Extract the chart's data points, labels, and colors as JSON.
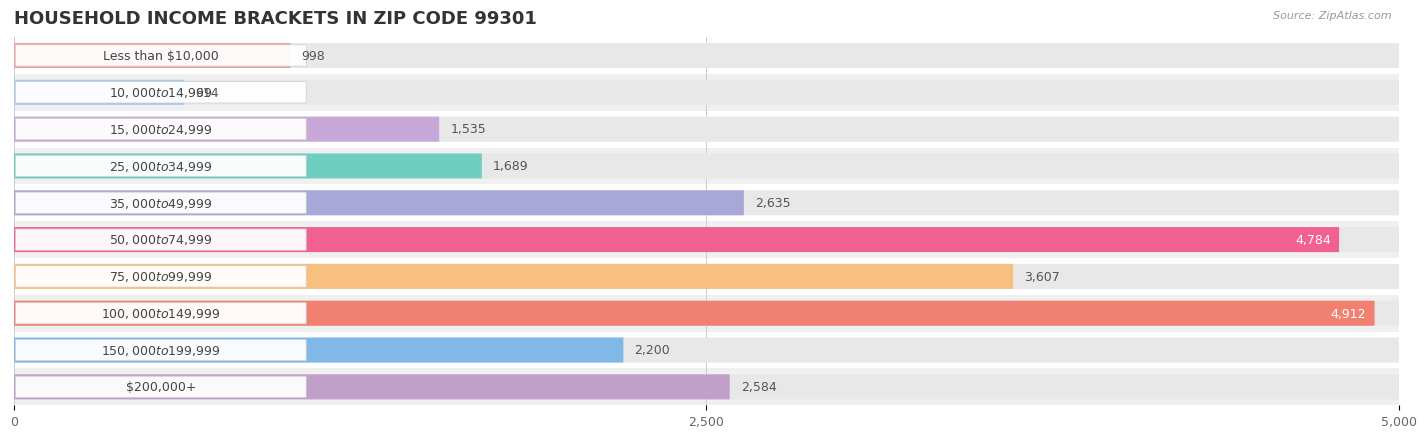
{
  "title": "HOUSEHOLD INCOME BRACKETS IN ZIP CODE 99301",
  "source": "Source: ZipAtlas.com",
  "categories": [
    "Less than $10,000",
    "$10,000 to $14,999",
    "$15,000 to $24,999",
    "$25,000 to $34,999",
    "$35,000 to $49,999",
    "$50,000 to $74,999",
    "$75,000 to $99,999",
    "$100,000 to $149,999",
    "$150,000 to $199,999",
    "$200,000+"
  ],
  "values": [
    998,
    614,
    1535,
    1689,
    2635,
    4784,
    3607,
    4912,
    2200,
    2584
  ],
  "bar_colors": [
    "#F4A0A0",
    "#A8C8F0",
    "#C8A8D8",
    "#70CEC0",
    "#A8A8D8",
    "#F06090",
    "#F8C080",
    "#F08070",
    "#80B8E8",
    "#C0A0C8"
  ],
  "xlim": [
    0,
    5000
  ],
  "xticks": [
    0,
    2500,
    5000
  ],
  "xtick_labels": [
    "0",
    "2,500",
    "5,000"
  ],
  "background_color": "#f7f7f7",
  "bar_bg_color": "#e8e8e8",
  "row_bg_colors": [
    "#ffffff",
    "#f0f0f0"
  ],
  "title_fontsize": 13,
  "label_fontsize": 9,
  "value_fontsize": 9,
  "white_value_threshold": 4500
}
